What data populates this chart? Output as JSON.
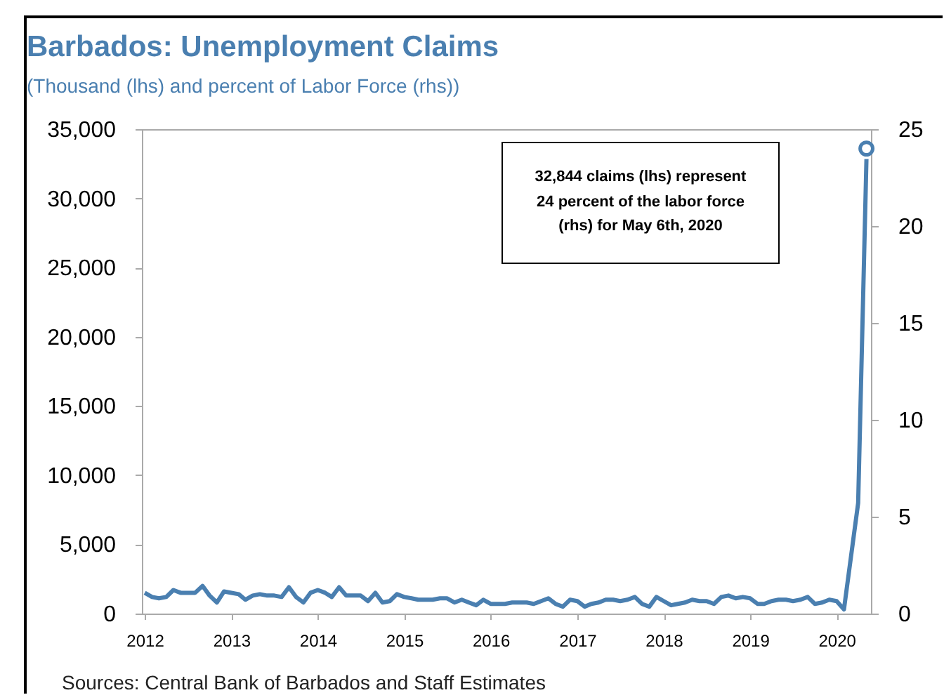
{
  "chart_data": {
    "type": "line",
    "title": "Barbados: Unemployment Claims",
    "subtitle": "(Thousand (lhs) and percent of Labor Force (rhs))",
    "annotations": [
      "32,844 claims (lhs) represent 24 percent of the labor force (rhs) for May 6th, 2020",
      "Sources: Central Bank of Barbados and Staff Estimates"
    ],
    "series": [
      {
        "color": "#4a7fb0",
        "marker": "none",
        "x": [
          "2012-01",
          "2012-02",
          "2012-03",
          "2012-04",
          "2012-05",
          "2012-06",
          "2012-07",
          "2012-08",
          "2012-09",
          "2012-10",
          "2012-11",
          "2012-12",
          "2013-01",
          "2013-02",
          "2013-03",
          "2013-04",
          "2013-05",
          "2013-06",
          "2013-07",
          "2013-08",
          "2013-09",
          "2013-10",
          "2013-11",
          "2013-12",
          "2014-01",
          "2014-02",
          "2014-03",
          "2014-04",
          "2014-05",
          "2014-06",
          "2014-07",
          "2014-08",
          "2014-09",
          "2014-10",
          "2014-11",
          "2014-12",
          "2015-01",
          "2015-02",
          "2015-03",
          "2015-04",
          "2015-05",
          "2015-06",
          "2015-07",
          "2015-08",
          "2015-09",
          "2015-10",
          "2015-11",
          "2015-12",
          "2016-01",
          "2016-02",
          "2016-03",
          "2016-04",
          "2016-05",
          "2016-06",
          "2016-07",
          "2016-08",
          "2016-09",
          "2016-10",
          "2016-11",
          "2016-12",
          "2017-01",
          "2017-02",
          "2017-03",
          "2017-04",
          "2017-05",
          "2017-06",
          "2017-07",
          "2017-08",
          "2017-09",
          "2017-10",
          "2017-11",
          "2017-12",
          "2018-01",
          "2018-02",
          "2018-03",
          "2018-04",
          "2018-05",
          "2018-06",
          "2018-07",
          "2018-08",
          "2018-09",
          "2018-10",
          "2018-11",
          "2018-12",
          "2019-01",
          "2019-02",
          "2019-03",
          "2019-04",
          "2019-05",
          "2019-06",
          "2019-07",
          "2019-08",
          "2019-09",
          "2019-10",
          "2019-11",
          "2019-12",
          "2020-01",
          "2020-02",
          "2020-04",
          "2020-05-06"
        ],
        "values": [
          1500,
          1200,
          1100,
          1200,
          1700,
          1500,
          1500,
          1500,
          2000,
          1300,
          800,
          1600,
          1500,
          1400,
          1000,
          1300,
          1400,
          1300,
          1300,
          1200,
          1900,
          1200,
          800,
          1500,
          1700,
          1500,
          1200,
          1900,
          1300,
          1300,
          1300,
          900,
          1500,
          800,
          900,
          1400,
          1200,
          1100,
          1000,
          1000,
          1000,
          1100,
          1100,
          800,
          1000,
          800,
          600,
          1000,
          700,
          700,
          700,
          800,
          800,
          800,
          700,
          900,
          1100,
          700,
          500,
          1000,
          900,
          500,
          700,
          800,
          1000,
          1000,
          900,
          1000,
          1200,
          700,
          500,
          1200,
          900,
          600,
          700,
          800,
          1000,
          900,
          900,
          700,
          1200,
          1300,
          1100,
          1200,
          1100,
          700,
          700,
          900,
          1000,
          1000,
          900,
          1000,
          1200,
          700,
          800,
          1000,
          900,
          300,
          8000,
          32844
        ]
      },
      {
        "type": "scatter",
        "axis": "y2",
        "color": "#4a7fb0",
        "marker": "circle",
        "x": [
          "2020-05-06"
        ],
        "values": [
          24
        ]
      }
    ],
    "xlim": [
      "2011-12-20",
      "2020-05-25"
    ],
    "xticks": [
      "2012",
      "2013",
      "2014",
      "2015",
      "2016",
      "2017",
      "2018",
      "2019",
      "2020"
    ],
    "ylim": [
      0,
      35000
    ],
    "yticks": [
      0,
      {
        "value": 5000,
        "label": "5,000"
      },
      {
        "value": 10000,
        "label": "10,000"
      },
      {
        "value": 15000,
        "label": "15,000"
      },
      {
        "value": 20000,
        "label": "20,000"
      },
      {
        "value": 25000,
        "label": "25,000"
      },
      {
        "value": 30000,
        "label": "30,000"
      },
      {
        "value": 35000,
        "label": "35,000"
      }
    ],
    "y2lim": [
      0,
      25
    ],
    "y2ticks": [
      0,
      5,
      10,
      15,
      20,
      25
    ],
    "grid": false
  }
}
